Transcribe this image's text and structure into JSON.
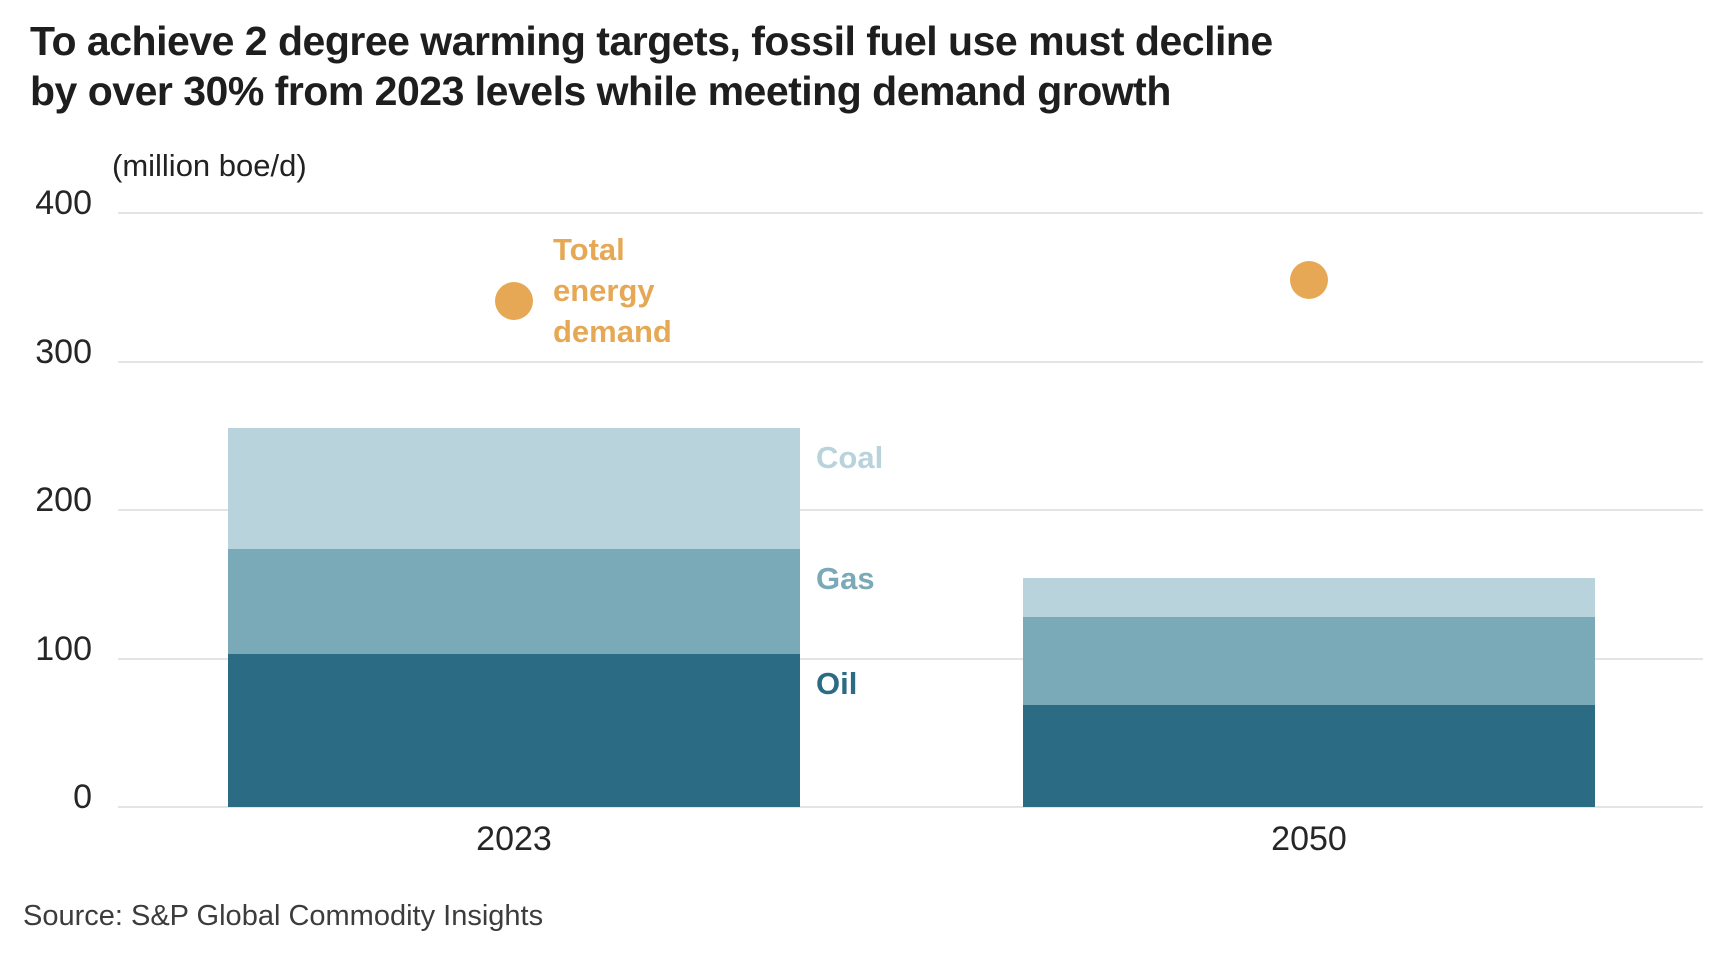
{
  "title": {
    "line1": "To achieve 2 degree warming targets, fossil fuel use must decline",
    "line2": "by over 30% from 2023 levels while meeting demand growth"
  },
  "source": "Source: S&P Global Commodity Insights",
  "chart_data": {
    "type": "bar",
    "subtype": "stacked-bars-with-total-demand-dots",
    "title": "To achieve 2 degree warming targets, fossil fuel use must decline by over 30% from 2023 levels while meeting demand growth",
    "ylabel": "(million boe/d)",
    "xlabel": "",
    "categories": [
      "2023",
      "2050"
    ],
    "series": [
      {
        "name": "Oil",
        "values": [
          103,
          69
        ],
        "color": "#2c6b84"
      },
      {
        "name": "Gas",
        "values": [
          71,
          59
        ],
        "color": "#7aa9b8"
      },
      {
        "name": "Coal",
        "values": [
          81,
          26
        ],
        "color": "#b9d3dd"
      }
    ],
    "stacked_totals": [
      255,
      154
    ],
    "dot_series": {
      "name": "Total energy demand",
      "label_lines": [
        "Total",
        "energy",
        "demand"
      ],
      "values": [
        341,
        355
      ],
      "color": "#e6a854"
    },
    "yticks": [
      0,
      100,
      200,
      300,
      400
    ],
    "ylim": [
      0,
      400
    ],
    "grid": true,
    "legend_position": "right-of-2023-dot",
    "source": "Source: S&P Global Commodity Insights"
  }
}
